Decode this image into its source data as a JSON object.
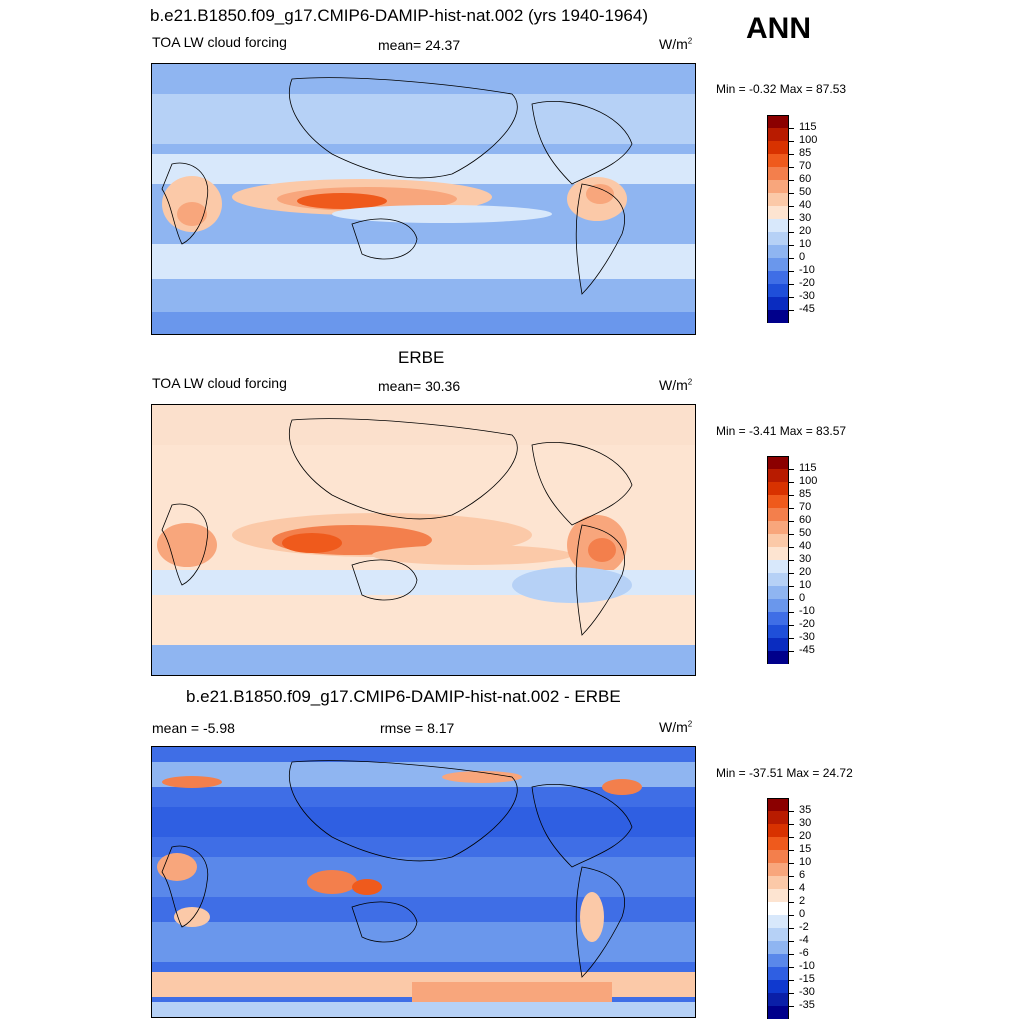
{
  "season": "ANN",
  "panels": [
    {
      "title": "b.e21.B1850.f09_g17.CMIP6-DAMIP-hist-nat.002 (yrs 1940-1964)",
      "left_label": "TOA LW cloud forcing",
      "mid_label": "mean=  24.37",
      "units": "W/m",
      "units_sup": "2",
      "minmax": "Min =  -0.32 Max =  87.53",
      "colorbar": {
        "labels": [
          "115",
          "100",
          "85",
          "70",
          "60",
          "50",
          "40",
          "30",
          "20",
          "10",
          "0",
          "-10",
          "-20",
          "-30",
          "-45"
        ],
        "colors": [
          "#8b0000",
          "#b81b00",
          "#d83200",
          "#ef5a1c",
          "#f37f4c",
          "#f8a67c",
          "#fbc9a8",
          "#fde4d1",
          "#d8e8fb",
          "#b6d1f6",
          "#8fb5f1",
          "#6a97ec",
          "#3f6ee6",
          "#1f4fd9",
          "#0a2cc0",
          "#00008b"
        ]
      },
      "map": "model"
    },
    {
      "title": "ERBE",
      "left_label": "TOA LW cloud forcing",
      "mid_label": "mean=  30.36",
      "units": "W/m",
      "units_sup": "2",
      "minmax": "Min =  -3.41 Max =  83.57",
      "colorbar": {
        "labels": [
          "115",
          "100",
          "85",
          "70",
          "60",
          "50",
          "40",
          "30",
          "20",
          "10",
          "0",
          "-10",
          "-20",
          "-30",
          "-45"
        ],
        "colors": [
          "#8b0000",
          "#b81b00",
          "#d83200",
          "#ef5a1c",
          "#f37f4c",
          "#f8a67c",
          "#fbc9a8",
          "#fde4d1",
          "#d8e8fb",
          "#b6d1f6",
          "#8fb5f1",
          "#6a97ec",
          "#3f6ee6",
          "#1f4fd9",
          "#0a2cc0",
          "#00008b"
        ]
      },
      "map": "obs"
    },
    {
      "title": "b.e21.B1850.f09_g17.CMIP6-DAMIP-hist-nat.002 - ERBE",
      "left_label": "mean =  -5.98",
      "mid_label": "rmse =   8.17",
      "units": "W/m",
      "units_sup": "2",
      "minmax": "Min = -37.51 Max =  24.72",
      "colorbar": {
        "labels": [
          "35",
          "30",
          "20",
          "15",
          "10",
          "6",
          "4",
          "2",
          "0",
          "-2",
          "-4",
          "-6",
          "-10",
          "-15",
          "-30",
          "-35"
        ],
        "colors": [
          "#8b0000",
          "#b81b00",
          "#d83200",
          "#ef5a1c",
          "#f37f4c",
          "#f8a67c",
          "#fbc9a8",
          "#fde4d1",
          "#ffffff",
          "#d8e8fb",
          "#b6d1f6",
          "#8fb5f1",
          "#5a88ea",
          "#2f5fe2",
          "#0f39cf",
          "#0a1fa8",
          "#00008b"
        ]
      },
      "map": "diff"
    }
  ]
}
